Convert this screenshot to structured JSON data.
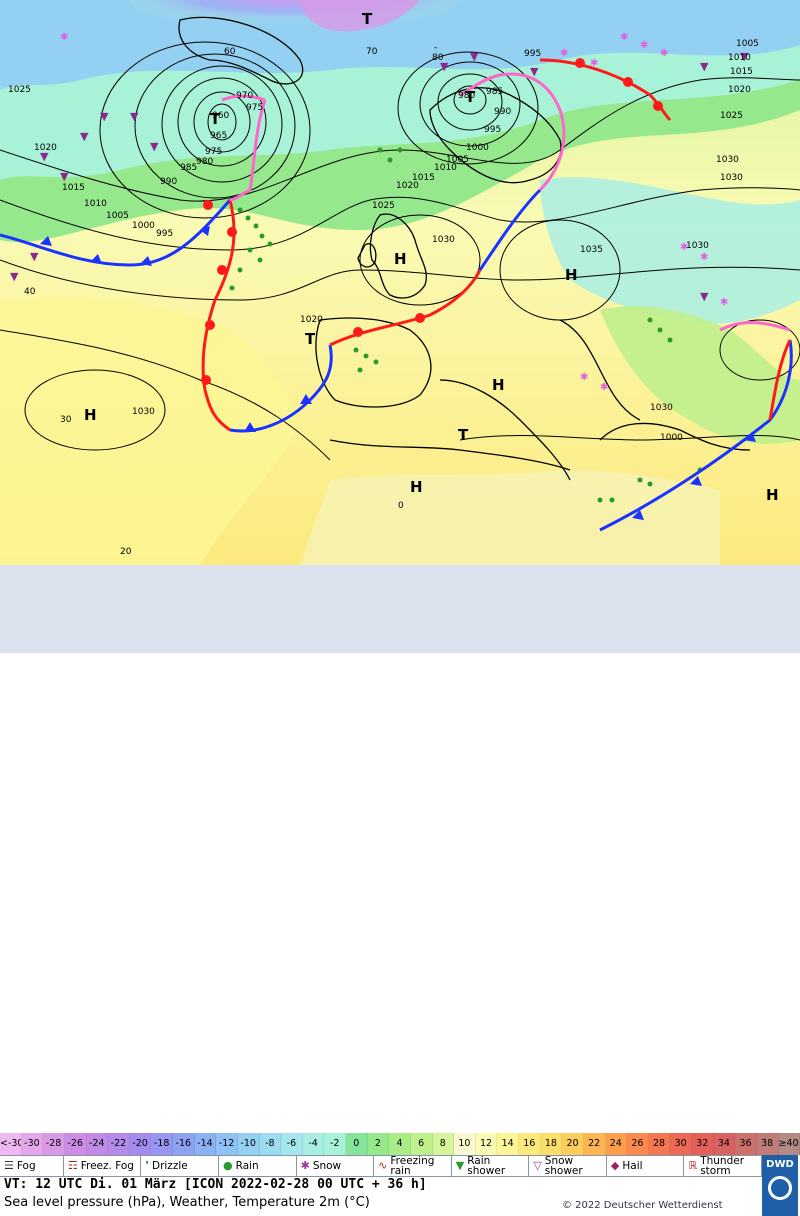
{
  "map": {
    "pressure_centres": [
      {
        "type": "T",
        "label": "T"
      },
      {
        "type": "T",
        "label": "T"
      },
      {
        "type": "T",
        "label": "T"
      },
      {
        "type": "T",
        "label": "T"
      },
      {
        "type": "T",
        "label": "T"
      },
      {
        "type": "H",
        "label": "H"
      },
      {
        "type": "H",
        "label": "H"
      },
      {
        "type": "H",
        "label": "H"
      },
      {
        "type": "H",
        "label": "H"
      },
      {
        "type": "H",
        "label": "H"
      },
      {
        "type": "H",
        "label": "H"
      }
    ],
    "isobar_labels": [
      "960",
      "965",
      "970",
      "975",
      "980",
      "985",
      "990",
      "995",
      "1000",
      "1005",
      "1010",
      "1015",
      "1020",
      "1025",
      "1030",
      "1035",
      "1030",
      "1030",
      "1025",
      "1020",
      "1015",
      "1010",
      "1005",
      "1000",
      "995",
      "990",
      "985",
      "980",
      "975",
      "1020",
      "1030",
      "1030",
      "1000",
      "995",
      "1005",
      "1010",
      "1015",
      "1020",
      "1025",
      "1030"
    ],
    "temperature_labels": [
      "40",
      "30",
      "20",
      "0",
      "60",
      "70",
      "80",
      "-"
    ]
  },
  "legend": {
    "scale": [
      {
        "label": "<-30",
        "color": "#f0b8f0"
      },
      {
        "label": "-30",
        "color": "#e6a6ec"
      },
      {
        "label": "-28",
        "color": "#d999e6"
      },
      {
        "label": "-26",
        "color": "#cc8ee4"
      },
      {
        "label": "-24",
        "color": "#c08ae6"
      },
      {
        "label": "-22",
        "color": "#b28aea"
      },
      {
        "label": "-20",
        "color": "#a48cee"
      },
      {
        "label": "-18",
        "color": "#9896f0"
      },
      {
        "label": "-16",
        "color": "#8ea2f2"
      },
      {
        "label": "-14",
        "color": "#8cb2f4"
      },
      {
        "label": "-12",
        "color": "#8ec2f4"
      },
      {
        "label": "-10",
        "color": "#94d0f2"
      },
      {
        "label": "-8",
        "color": "#9cdcf0"
      },
      {
        "label": "-6",
        "color": "#a4e6ec"
      },
      {
        "label": "-4",
        "color": "#a8eee4"
      },
      {
        "label": "-2",
        "color": "#a8f2d8"
      },
      {
        "label": "0",
        "color": "#86e49a"
      },
      {
        "label": "2",
        "color": "#96e88c"
      },
      {
        "label": "4",
        "color": "#aaec88"
      },
      {
        "label": "6",
        "color": "#c0f08c"
      },
      {
        "label": "8",
        "color": "#d6f498"
      },
      {
        "label": "10",
        "color": "#fafad2"
      },
      {
        "label": "12",
        "color": "#fafab4"
      },
      {
        "label": "14",
        "color": "#fcf696"
      },
      {
        "label": "16",
        "color": "#fcea7e"
      },
      {
        "label": "18",
        "color": "#fcde6a"
      },
      {
        "label": "20",
        "color": "#fccc5c"
      },
      {
        "label": "22",
        "color": "#fcb654"
      },
      {
        "label": "24",
        "color": "#fc9e4e"
      },
      {
        "label": "26",
        "color": "#fc8a4e"
      },
      {
        "label": "28",
        "color": "#f47850"
      },
      {
        "label": "30",
        "color": "#ec6a54"
      },
      {
        "label": "32",
        "color": "#e4605a"
      },
      {
        "label": "34",
        "color": "#d86262"
      },
      {
        "label": "36",
        "color": "#cc706c"
      },
      {
        "label": "38",
        "color": "#c07c78"
      },
      {
        "label": "≥40 °C",
        "color": "#b48a86"
      }
    ],
    "weather_symbols": [
      {
        "icon": "fog-icon",
        "label": "Fog"
      },
      {
        "icon": "freezing-fog-icon",
        "label": "Freez. Fog"
      },
      {
        "icon": "drizzle-icon",
        "label": "Drizzle"
      },
      {
        "icon": "rain-icon",
        "label": "Rain"
      },
      {
        "icon": "snow-icon",
        "label": "Snow"
      },
      {
        "icon": "freezing-rain-icon",
        "label": "Freezing rain"
      },
      {
        "icon": "rain-shower-icon",
        "label": "Rain shower"
      },
      {
        "icon": "snow-shower-icon",
        "label": "Snow shower"
      },
      {
        "icon": "hail-icon",
        "label": "Hail"
      },
      {
        "icon": "thunderstorm-icon",
        "label": "Thunder storm"
      }
    ],
    "valid_time": "VT: 12 UTC Di.  01 März [ICON 2022-02-28  00 UTC + 36 h]",
    "description": "Sea level pressure (hPa), Weather, Temperature 2m (°C)",
    "copyright": "© 2022 Deutscher Wetterdienst",
    "logo_text": "DWD",
    "colors": {
      "cold_front": "#1a33ff",
      "warm_front": "#ff1a1a",
      "occlusion": "#ff66cc"
    }
  }
}
